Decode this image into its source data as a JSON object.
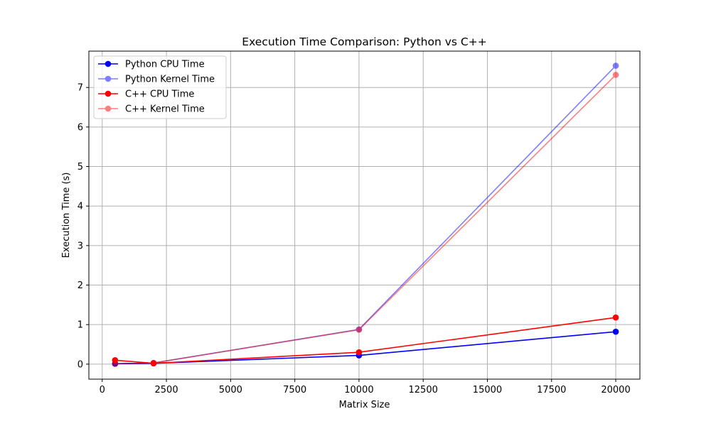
{
  "chart_data": {
    "type": "line",
    "title": "Execution Time Comparison: Python vs C++",
    "xlabel": "Matrix Size",
    "ylabel": "Execution Time (s)",
    "xlim": [
      -520,
      20940
    ],
    "ylim": [
      -0.38,
      7.92
    ],
    "xticks": [
      0,
      2500,
      5000,
      7500,
      10000,
      12500,
      15000,
      17500,
      20000
    ],
    "yticks": [
      0,
      1,
      2,
      3,
      4,
      5,
      6,
      7
    ],
    "grid": true,
    "legend_position": "top-left",
    "x": [
      500,
      2000,
      10000,
      20000
    ],
    "series": [
      {
        "name": "Python CPU Time",
        "values": [
          0.01,
          0.02,
          0.22,
          0.82
        ],
        "color": "#0000ff",
        "opacity": 1.0
      },
      {
        "name": "Python Kernel Time",
        "values": [
          0.01,
          0.03,
          0.88,
          7.55
        ],
        "color": "#0000ff",
        "opacity": 0.5
      },
      {
        "name": "C++ CPU Time",
        "values": [
          0.1,
          0.02,
          0.3,
          1.18
        ],
        "color": "#ff0000",
        "opacity": 1.0
      },
      {
        "name": "C++ Kernel Time",
        "values": [
          0.01,
          0.03,
          0.87,
          7.32
        ],
        "color": "#ff0000",
        "opacity": 0.5
      }
    ]
  }
}
